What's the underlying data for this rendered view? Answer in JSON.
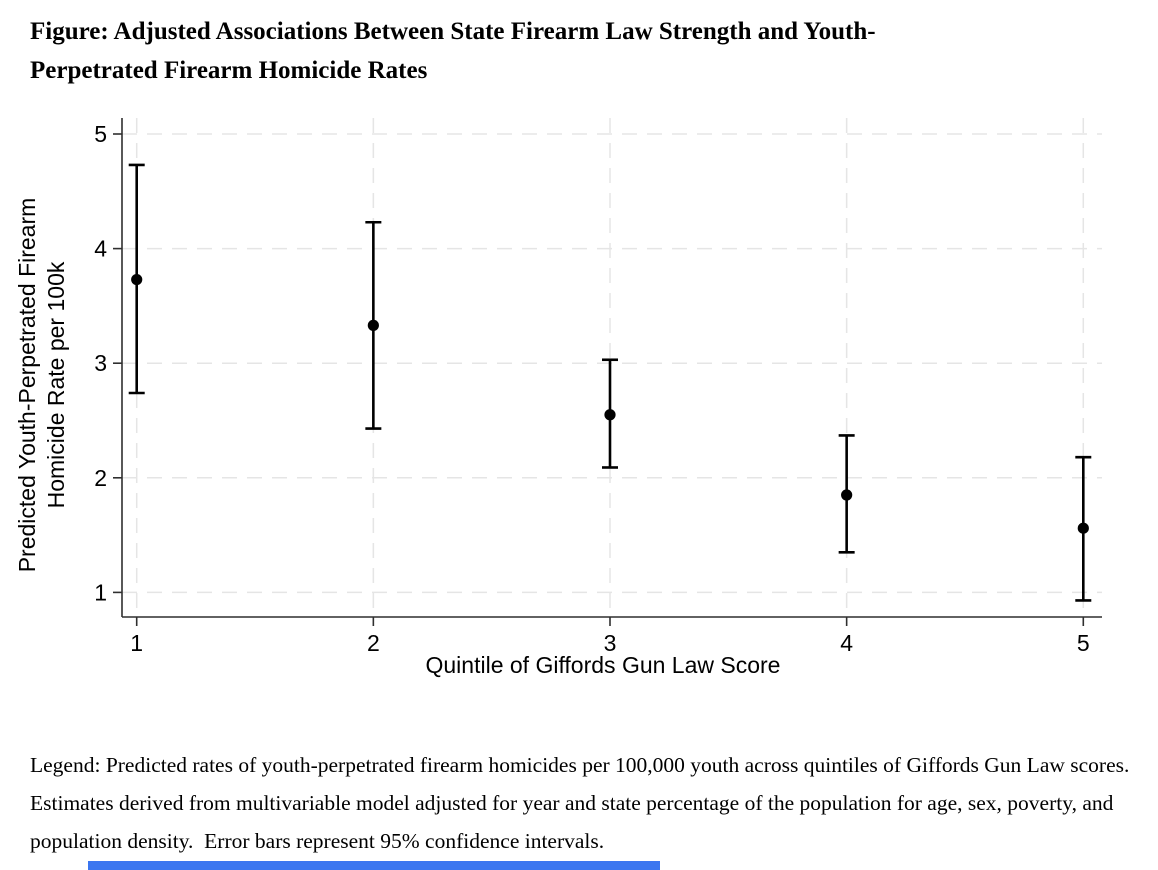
{
  "page": {
    "title_line1": "Figure: Adjusted Associations Between State Firearm Law Strength and Youth-",
    "title_line2": "Perpetrated Firearm Homicide Rates",
    "legend_text": "Legend: Predicted rates of youth-perpetrated firearm homicides per 100,000 youth across quintiles of Giffords Gun Law scores.  Estimates derived from multivariable model adjusted for year and state percentage of the population for age, sex, poverty, and population density.  Error bars represent 95% confidence intervals."
  },
  "chart_data": {
    "type": "scatter",
    "subtype": "point-estimates-with-95-percent-ci-error-bars",
    "title": "Figure: Adjusted Associations Between State Firearm Law Strength and Youth-Perpetrated Firearm Homicide Rates",
    "xlabel": "Quintile of Giffords Gun Law Score",
    "ylabel_line1": "Predicted Youth-Perpetrated Firearm",
    "ylabel_line2": "Homicide Rate per 100k",
    "x": [
      1,
      2,
      3,
      4,
      5
    ],
    "xticks": [
      "1",
      "2",
      "3",
      "4",
      "5"
    ],
    "yticks": [
      "1",
      "2",
      "3",
      "4",
      "5"
    ],
    "ylim": [
      0.8,
      5.1
    ],
    "grid": "both-axes-dashed",
    "legend_position": "none",
    "series": [
      {
        "name": "Predicted youth-perpetrated firearm homicide rate per 100k",
        "estimates": [
          3.73,
          3.33,
          2.55,
          1.85,
          1.56
        ],
        "ci_low": [
          2.74,
          2.43,
          2.09,
          1.35,
          0.93
        ],
        "ci_high": [
          4.73,
          4.23,
          3.03,
          2.37,
          2.18
        ]
      }
    ],
    "marker_color": "#000000",
    "errorbar_color": "#000000",
    "grid_color": "#e5e5e5",
    "axis_color": "#2f2f2f"
  },
  "decorations": {
    "bottom_bar_color": "#3b76f0"
  }
}
